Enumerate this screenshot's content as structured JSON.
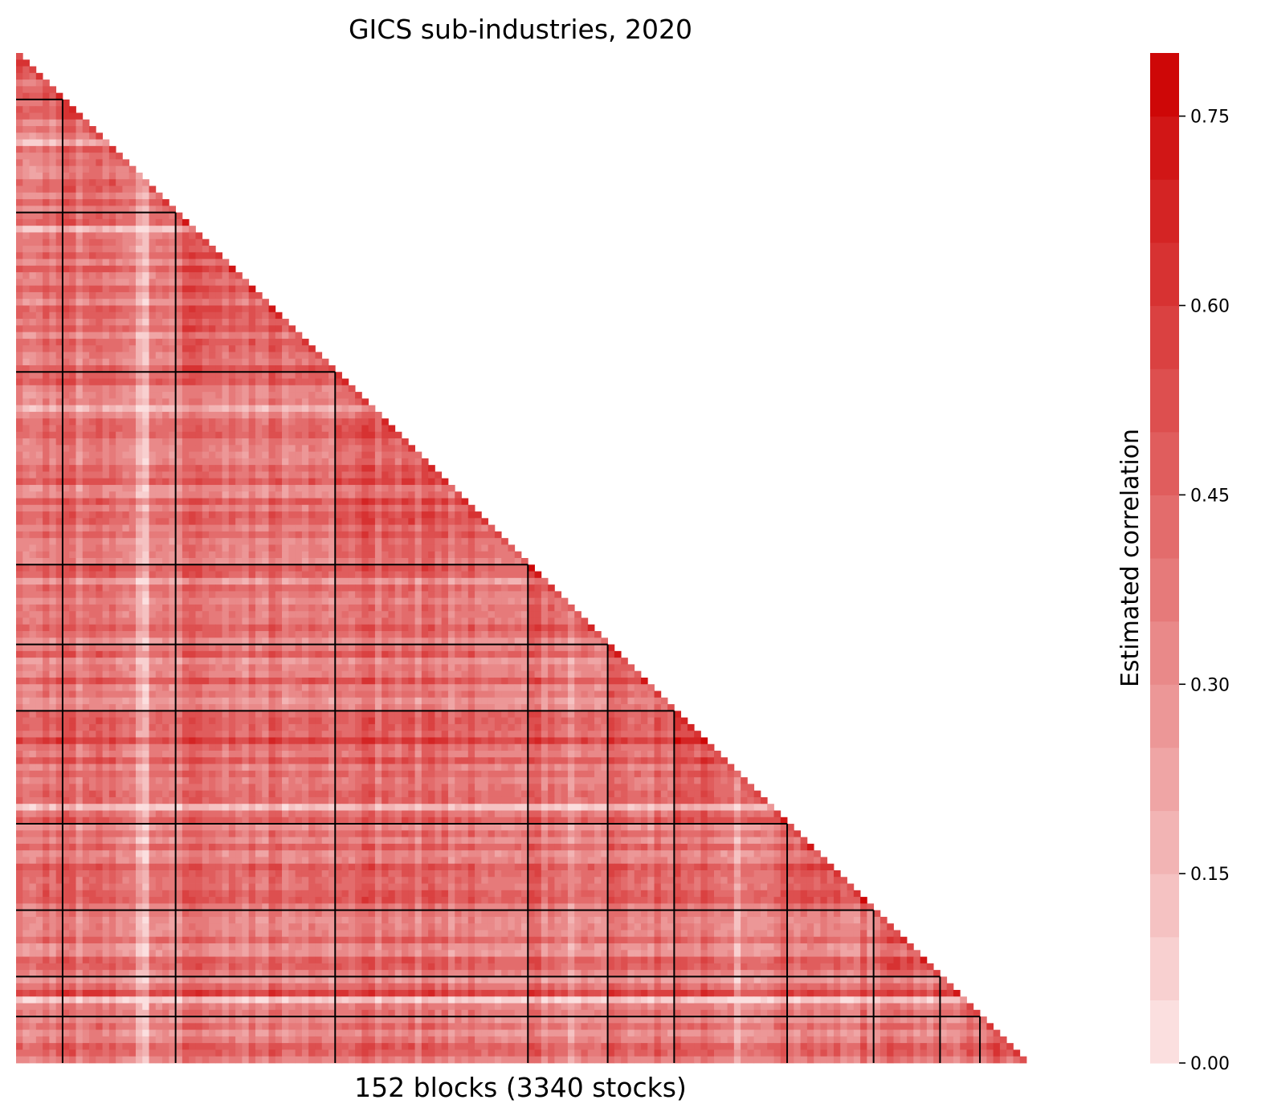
{
  "chart_data": {
    "type": "heatmap",
    "title": "GICS sub-industries, 2020",
    "xlabel": "152 blocks (3340 stocks)",
    "ylabel": "",
    "shape": "lower-triangular correlation matrix",
    "n_blocks": 152,
    "n_stocks": 3340,
    "colorbar": {
      "label": "Estimated correlation",
      "range": [
        0.0,
        0.8
      ],
      "ticks": [
        0.0,
        0.15,
        0.3,
        0.45,
        0.6,
        0.75
      ],
      "tick_labels": [
        "0.00",
        "0.15",
        "0.30",
        "0.45",
        "0.60",
        "0.75"
      ],
      "levels": 16,
      "color_low": "#fde6e6",
      "color_high": "#cc0000"
    },
    "sector_boundaries": [
      7,
      24,
      48,
      77,
      89,
      99,
      116,
      129,
      139,
      145,
      152
    ],
    "typical_correlation": 0.4,
    "grid": false
  }
}
